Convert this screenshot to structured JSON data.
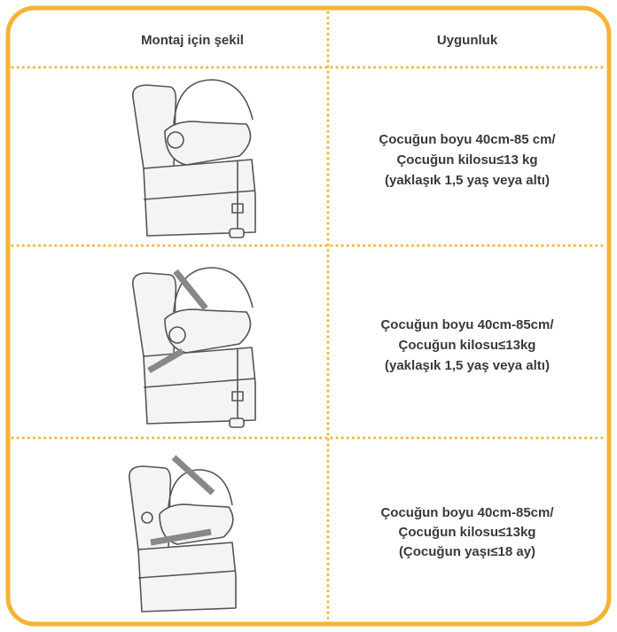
{
  "table": {
    "headers": [
      "Montaj için şekil",
      "Uygunluk"
    ],
    "rows": [
      {
        "suitability": [
          "Çocuğun boyu 40cm-85 cm/",
          "Çocuğun kilosu≤13 kg",
          "(yaklaşık 1,5 yaş veya altı)"
        ]
      },
      {
        "suitability": [
          "Çocuğun boyu 40cm-85cm/",
          "Çocuğun kilosu≤13kg",
          "(yaklaşık 1,5 yaş veya altı)"
        ]
      },
      {
        "suitability": [
          "Çocuğun boyu 40cm-85cm/",
          "Çocuğun kilosu≤13kg",
          "(Çocuğun yaşı≤18 ay)"
        ]
      }
    ]
  }
}
